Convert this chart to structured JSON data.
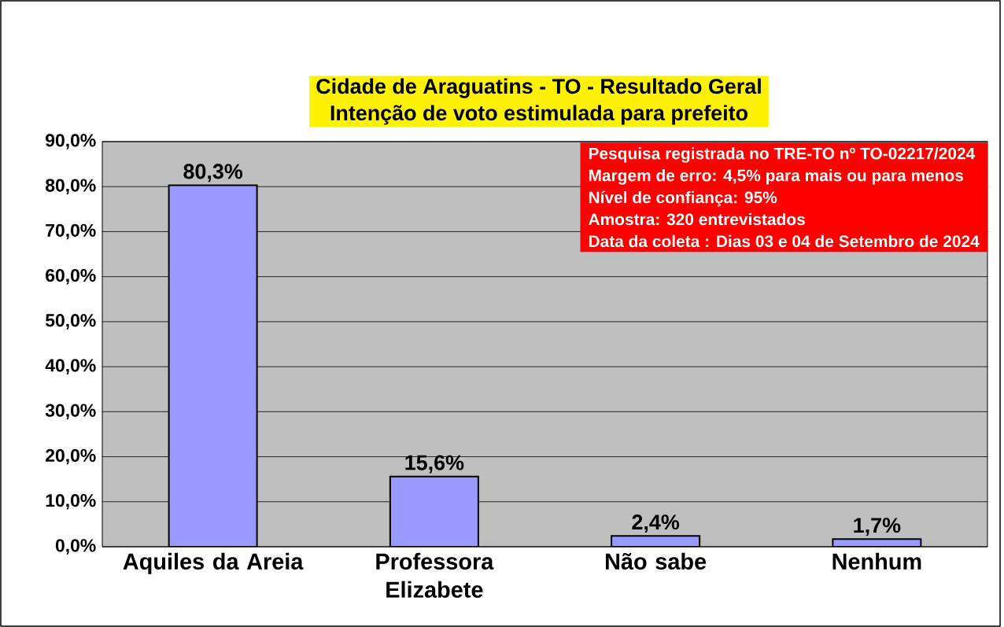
{
  "chart_data": {
    "type": "bar",
    "title": "Cidade de Araguatins - TO - Resultado Geral",
    "subtitle": "Intenção de voto estimulada para prefeito",
    "categories": [
      "Aquiles da Areia",
      "Professora Elizabete",
      "Não sabe",
      "Nenhum"
    ],
    "values": [
      80.3,
      15.6,
      2.4,
      1.7
    ],
    "color": "#9999ff",
    "value_labels": [
      "80,3%",
      "15,6%",
      "2,4%",
      "1,7%"
    ],
    "ylim": [
      0,
      90
    ],
    "yticks": [
      {
        "value": 0,
        "label": "0,0%"
      },
      {
        "value": 10,
        "label": "10,0%"
      },
      {
        "value": 20,
        "label": "20,0%"
      },
      {
        "value": 30,
        "label": "30,0%"
      },
      {
        "value": 40,
        "label": "40,0%"
      },
      {
        "value": 50,
        "label": "50,0%"
      },
      {
        "value": 60,
        "label": "60,0%"
      },
      {
        "value": 70,
        "label": "70,0%"
      },
      {
        "value": 80,
        "label": "80,0%"
      },
      {
        "value": 90,
        "label": "90,0%"
      }
    ],
    "grid": "y",
    "annotations": [
      "Pesquisa registrada no TRE-TO nº TO-02217/2024",
      "Margem de erro: 4,5% para mais ou para menos",
      "Nível de confiança: 95%",
      "Amostra: 320 entrevistados",
      "Data da coleta : Dias 03 e 04 de Setembro de 2024"
    ]
  }
}
